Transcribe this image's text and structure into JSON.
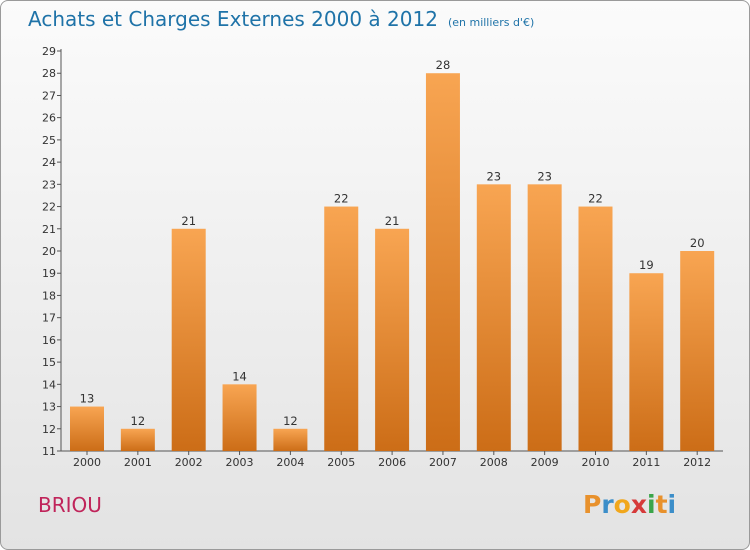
{
  "header": {
    "title": "Achats et Charges Externes 2000 à 2012",
    "subtitle": "(en milliers d'€)"
  },
  "footer": {
    "commune": "BRIOU",
    "logo": "Proxiti",
    "logo_letters": [
      {
        "ch": "P",
        "color": "#e8912c"
      },
      {
        "ch": "r",
        "color": "#3c8ec9"
      },
      {
        "ch": "o",
        "color": "#f1a71c"
      },
      {
        "ch": "x",
        "color": "#d63a3a"
      },
      {
        "ch": "i",
        "color": "#3aa54a"
      },
      {
        "ch": "t",
        "color": "#e8912c"
      },
      {
        "ch": "i",
        "color": "#3c8ec9"
      }
    ]
  },
  "colors": {
    "title": "#1f73a8",
    "commune": "#c0245a",
    "bar_top": "#f8a552",
    "bar_bottom": "#cc6d17"
  },
  "chart_data": {
    "type": "bar",
    "title": "Achats et Charges Externes 2000 à 2012",
    "subtitle": "(en milliers d'€)",
    "xlabel": "",
    "ylabel": "",
    "categories": [
      "2000",
      "2001",
      "2002",
      "2003",
      "2004",
      "2005",
      "2006",
      "2007",
      "2008",
      "2009",
      "2010",
      "2011",
      "2012"
    ],
    "values": [
      13,
      12,
      21,
      14,
      12,
      22,
      21,
      28,
      23,
      23,
      22,
      19,
      20
    ],
    "ylim": [
      11,
      29
    ],
    "yticks": [
      11,
      12,
      13,
      14,
      15,
      16,
      17,
      18,
      19,
      20,
      21,
      22,
      23,
      24,
      25,
      26,
      27,
      28,
      29
    ],
    "grid": false,
    "legend": "none"
  }
}
